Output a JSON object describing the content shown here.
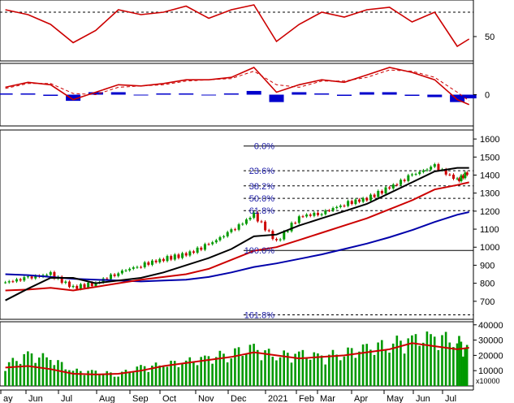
{
  "colors": {
    "rsi_line": "#cc0000",
    "macd_line": "#cc0000",
    "macd_signal": "#cc0000",
    "macd_hist": "#0000cc",
    "candle_up": "#009900",
    "candle_down": "#cc0000",
    "ma_short": "#000000",
    "ma_mid": "#cc0000",
    "ma_long": "#0000aa",
    "fib_text": "#1a1aa6",
    "volume_bar": "#009900",
    "volume_ma": "#cc0000",
    "grid": "#000000"
  },
  "chart_data": [
    {
      "type": "line",
      "panel": "rsi",
      "ylim": [
        30,
        80
      ],
      "yticks": [
        {
          "value": 50,
          "label": "50"
        }
      ],
      "reference_lines": [
        70,
        30
      ],
      "x": [
        "2020-05-25",
        "2020-06-15",
        "2020-07-06",
        "2020-07-27",
        "2020-08-17",
        "2020-09-07",
        "2020-09-28",
        "2020-10-19",
        "2020-11-09",
        "2020-11-30",
        "2020-12-21",
        "2021-01-11",
        "2021-02-01",
        "2021-02-22",
        "2021-03-15",
        "2021-04-05",
        "2021-04-26",
        "2021-05-17",
        "2021-06-07",
        "2021-06-28",
        "2021-07-19",
        "2021-07-30"
      ],
      "series": [
        {
          "values": [
            72,
            68,
            60,
            45,
            55,
            72,
            68,
            70,
            75,
            65,
            72,
            76,
            46,
            60,
            70,
            66,
            72,
            74,
            62,
            70,
            42,
            48
          ]
        }
      ]
    },
    {
      "type": "line",
      "panel": "macd",
      "yticks": [
        {
          "value": 0,
          "label": "0"
        }
      ],
      "x": [
        "2020-05-25",
        "2020-06-15",
        "2020-07-06",
        "2020-07-27",
        "2020-08-17",
        "2020-09-07",
        "2020-09-28",
        "2020-10-19",
        "2020-11-09",
        "2020-11-30",
        "2020-12-21",
        "2021-01-11",
        "2021-02-01",
        "2021-02-22",
        "2021-03-15",
        "2021-04-05",
        "2021-04-26",
        "2021-05-17",
        "2021-06-07",
        "2021-06-28",
        "2021-07-19",
        "2021-07-30"
      ],
      "series": [
        {
          "values": [
            6,
            10,
            8,
            -4,
            2,
            8,
            7,
            9,
            12,
            12,
            14,
            22,
            2,
            8,
            12,
            10,
            16,
            22,
            18,
            12,
            -4,
            -8
          ]
        },
        {
          "values": [
            5,
            9,
            9,
            1,
            0,
            6,
            7,
            8,
            11,
            12,
            13,
            19,
            8,
            6,
            11,
            11,
            14,
            20,
            19,
            14,
            2,
            -5
          ]
        },
        {
          "type": "bar",
          "values": [
            1,
            1,
            -1,
            -5,
            2,
            2,
            0,
            1,
            1,
            0,
            1,
            3,
            -6,
            2,
            1,
            -1,
            2,
            2,
            -1,
            -2,
            -6,
            -3
          ]
        }
      ]
    },
    {
      "type": "line",
      "panel": "price",
      "ylim": [
        600,
        1650
      ],
      "yticks": [
        {
          "value": 1600,
          "label": "1600"
        },
        {
          "value": 1500,
          "label": "1500"
        },
        {
          "value": 1400,
          "label": "1400"
        },
        {
          "value": 1300,
          "label": "1300"
        },
        {
          "value": 1200,
          "label": "1200"
        },
        {
          "value": 1100,
          "label": "1100"
        },
        {
          "value": 1000,
          "label": "1000"
        },
        {
          "value": 900,
          "label": "900"
        },
        {
          "value": 800,
          "label": "800"
        },
        {
          "value": 700,
          "label": "700"
        }
      ],
      "fibonacci": [
        {
          "label": "0.0%",
          "value": 1561
        },
        {
          "label": "23.6%",
          "value": 1424
        },
        {
          "label": "38.2%",
          "value": 1340
        },
        {
          "label": "50.0%",
          "value": 1271
        },
        {
          "label": "61.8%",
          "value": 1203
        },
        {
          "label": "100.0%",
          "value": 982
        },
        {
          "label": "161.8%",
          "value": 625
        }
      ],
      "x": [
        "2020-05-25",
        "2020-06-15",
        "2020-07-06",
        "2020-07-27",
        "2020-08-17",
        "2020-09-07",
        "2020-09-28",
        "2020-10-19",
        "2020-11-09",
        "2020-11-30",
        "2020-12-21",
        "2021-01-11",
        "2021-02-01",
        "2021-02-22",
        "2021-03-15",
        "2021-04-05",
        "2021-04-26",
        "2021-05-17",
        "2021-06-07",
        "2021-06-28",
        "2021-07-19",
        "2021-07-30"
      ],
      "series": [
        {
          "type": "candlestick",
          "values": [
            805,
            830,
            850,
            775,
            800,
            860,
            900,
            935,
            960,
            1015,
            1090,
            1180,
            1030,
            1170,
            1190,
            1240,
            1270,
            1330,
            1400,
            1450,
            1370,
            1420
          ]
        },
        {
          "values": [
            705,
            770,
            830,
            830,
            800,
            815,
            830,
            860,
            900,
            940,
            990,
            1060,
            1070,
            1120,
            1160,
            1200,
            1240,
            1300,
            1360,
            1420,
            1440,
            1440
          ]
        },
        {
          "values": [
            760,
            765,
            775,
            760,
            780,
            800,
            820,
            835,
            850,
            880,
            930,
            980,
            1000,
            1040,
            1080,
            1120,
            1160,
            1210,
            1260,
            1320,
            1345,
            1360
          ]
        },
        {
          "values": [
            850,
            845,
            835,
            825,
            820,
            815,
            810,
            815,
            820,
            835,
            860,
            890,
            910,
            935,
            960,
            990,
            1020,
            1055,
            1095,
            1140,
            1180,
            1195
          ]
        }
      ]
    },
    {
      "type": "bar",
      "panel": "volume",
      "unit_label": "x10000",
      "ylim": [
        0,
        42000
      ],
      "yticks": [
        {
          "value": 40000,
          "label": "40000"
        },
        {
          "value": 30000,
          "label": "30000"
        },
        {
          "value": 20000,
          "label": "20000"
        },
        {
          "value": 10000,
          "label": "10000"
        }
      ],
      "x": [
        "2020-05-25",
        "2020-06-15",
        "2020-07-06",
        "2020-07-27",
        "2020-08-17",
        "2020-09-07",
        "2020-09-28",
        "2020-10-19",
        "2020-11-09",
        "2020-11-30",
        "2020-12-21",
        "2021-01-11",
        "2021-02-01",
        "2021-02-22",
        "2021-03-15",
        "2021-04-05",
        "2021-04-26",
        "2021-05-17",
        "2021-06-07",
        "2021-06-28",
        "2021-07-19",
        "2021-07-30"
      ],
      "series": [
        {
          "values": [
            14000,
            20000,
            18000,
            10000,
            9000,
            8000,
            12000,
            14000,
            16000,
            18000,
            22000,
            24000,
            20000,
            21000,
            19000,
            22000,
            24000,
            28000,
            30000,
            32000,
            30000,
            22000
          ]
        },
        {
          "type": "line",
          "values": [
            12000,
            13000,
            11000,
            8000,
            7500,
            8000,
            10000,
            13000,
            15000,
            17000,
            19000,
            22000,
            20000,
            18000,
            19000,
            20000,
            22000,
            24000,
            28000,
            26000,
            24000,
            25000
          ]
        }
      ]
    }
  ],
  "x_axis": {
    "labels": [
      "ay",
      "Jun",
      "Jul",
      "Aug",
      "Sep",
      "Oct",
      "Nov",
      "Dec",
      "2021",
      "Feb",
      "Mar",
      "Apr",
      "May",
      "Jun",
      "Jul"
    ]
  }
}
